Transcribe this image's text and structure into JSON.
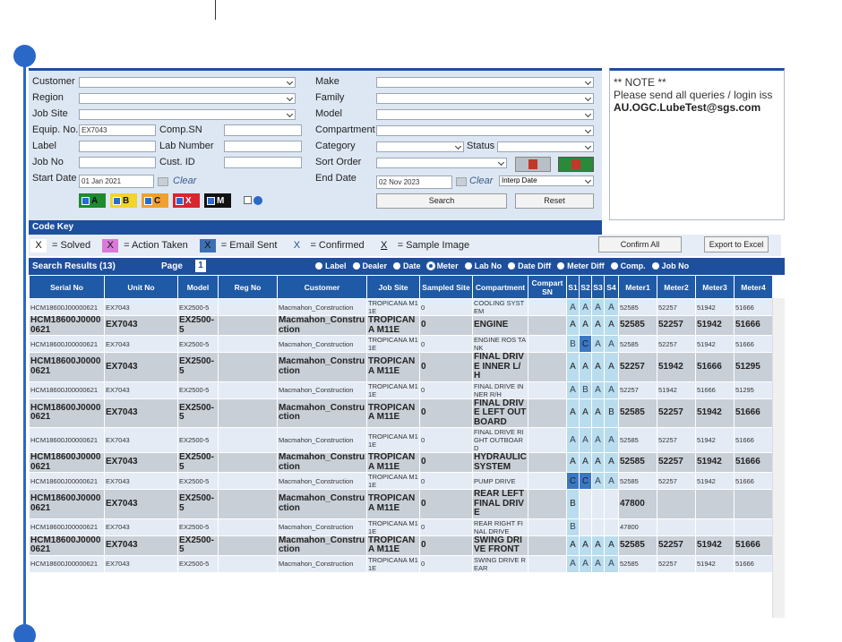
{
  "form": {
    "customer": "Customer",
    "region": "Region",
    "job_site": "Job Site",
    "equip_no": "Equip. No.",
    "equip_no_value": "EX7043",
    "comp_sn": "Comp.SN",
    "label": "Label",
    "lab_number": "Lab Number",
    "job_no": "Job No",
    "cust_id": "Cust. ID",
    "start_date": "Start Date",
    "start_date_value": "01 Jan 2021",
    "clear": "Clear",
    "make": "Make",
    "family": "Family",
    "model": "Model",
    "compartment": "Compartment",
    "category": "Category",
    "status": "Status",
    "sort_order": "Sort Order",
    "end_date": "End Date",
    "end_date_value": "02 Nov 2023",
    "interp": "Interp Date",
    "search": "Search",
    "reset": "Reset",
    "grades": [
      "A",
      "B",
      "C",
      "X",
      "M"
    ]
  },
  "note": {
    "title": "** NOTE **",
    "text": "Please send all queries / login iss",
    "email": "AU.OGC.LubeTest@sgs.com"
  },
  "code_key": {
    "title": "Code Key",
    "items": [
      {
        "code": "X",
        "text": "= Solved"
      },
      {
        "code": "X",
        "text": "= Action Taken"
      },
      {
        "code": "X",
        "text": "= Email Sent"
      },
      {
        "code": "X",
        "text": "= Confirmed"
      },
      {
        "code": "X",
        "text": "= Sample Image"
      }
    ],
    "confirm_all": "Confirm All",
    "export": "Export to Excel"
  },
  "results": {
    "title": "Search Results (13)",
    "page_label": "Page",
    "page": "1",
    "sort_options": [
      "Label",
      "Dealer",
      "Date",
      "Meter",
      "Lab No",
      "Date Diff",
      "Meter Diff",
      "Comp.",
      "Job No"
    ],
    "selected": 3
  },
  "table": {
    "headers": [
      "Serial No",
      "Unit No",
      "Model",
      "Reg No",
      "Customer",
      "Job Site",
      "Sampled Site",
      "Compartment",
      "Compart SN",
      "S1",
      "S2",
      "S3",
      "S4",
      "Meter1",
      "Meter2",
      "Meter3",
      "Meter4"
    ],
    "rows": [
      [
        "HCM18600J00000621",
        "EX7043",
        "EX2500-5",
        null,
        "Macmahon_Construction",
        "TROPICANA M11E",
        0,
        "COOLING SYSTEM",
        null,
        "A",
        "A",
        "A",
        "A",
        52585,
        52257,
        51942,
        51666
      ],
      [
        "HCM18600J00000621",
        "EX7043",
        "EX2500-5",
        null,
        "Macmahon_Construction",
        "TROPICANA M11E",
        0,
        "ENGINE",
        null,
        "A",
        "A",
        "A",
        "A",
        52585,
        52257,
        51942,
        51666
      ],
      [
        "HCM18600J00000621",
        "EX7043",
        "EX2500-5",
        null,
        "Macmahon_Construction",
        "TROPICANA M11E",
        0,
        "ENGINE ROS TANK",
        null,
        "B",
        "C",
        "A",
        "A",
        52585,
        52257,
        51942,
        51666
      ],
      [
        "HCM18600J00000621",
        "EX7043",
        "EX2500-5",
        null,
        "Macmahon_Construction",
        "TROPICANA M11E",
        0,
        "FINAL DRIVE INNER L/H",
        null,
        "A",
        "A",
        "A",
        "A",
        52257,
        51942,
        51666,
        51295
      ],
      [
        "HCM18600J00000621",
        "EX7043",
        "EX2500-5",
        null,
        "Macmahon_Construction",
        "TROPICANA M11E",
        0,
        "FINAL DRIVE INNER R/H",
        null,
        "A",
        "B",
        "A",
        "A",
        52257,
        51942,
        51666,
        51295
      ],
      [
        "HCM18600J00000621",
        "EX7043",
        "EX2500-5",
        null,
        "Macmahon_Construction",
        "TROPICANA M11E",
        0,
        "FINAL DRIVE LEFT OUTBOARD",
        null,
        "A",
        "A",
        "A",
        "B",
        52585,
        52257,
        51942,
        51666
      ],
      [
        "HCM18600J00000621",
        "EX7043",
        "EX2500-5",
        null,
        "Macmahon_Construction",
        "TROPICANA M11E",
        0,
        "FINAL DRIVE RIGHT OUTBOARD",
        null,
        "A",
        "A",
        "A",
        "A",
        52585,
        52257,
        51942,
        51666
      ],
      [
        "HCM18600J00000621",
        "EX7043",
        "EX2500-5",
        null,
        "Macmahon_Construction",
        "TROPICANA M11E",
        0,
        "HYDRAULIC SYSTEM",
        null,
        "A",
        "A",
        "A",
        "A",
        52585,
        52257,
        51942,
        51666
      ],
      [
        "HCM18600J00000621",
        "EX7043",
        "EX2500-5",
        null,
        "Macmahon_Construction",
        "TROPICANA M11E",
        0,
        "PUMP DRIVE",
        null,
        "C",
        "C",
        "A",
        "A",
        52585,
        52257,
        51942,
        51666
      ],
      [
        "HCM18600J00000621",
        "EX7043",
        "EX2500-5",
        null,
        "Macmahon_Construction",
        "TROPICANA M11E",
        0,
        "REAR LEFT FINAL DRIVE",
        null,
        "B",
        null,
        null,
        null,
        47800,
        null,
        null,
        null
      ],
      [
        "HCM18600J00000621",
        "EX7043",
        "EX2500-5",
        null,
        "Macmahon_Construction",
        "TROPICANA M11E",
        0,
        "REAR RIGHT FINAL DRIVE",
        null,
        "B",
        null,
        null,
        null,
        47800,
        null,
        null,
        null
      ],
      [
        "HCM18600J00000621",
        "EX7043",
        "EX2500-5",
        null,
        "Macmahon_Construction",
        "TROPICANA M11E",
        0,
        "SWING DRIVE FRONT",
        null,
        "A",
        "A",
        "A",
        "A",
        52585,
        52257,
        51942,
        51666
      ],
      [
        "HCM18600J00000621",
        "EX7043",
        "EX2500-5",
        null,
        "Macmahon_Construction",
        "TROPICANA M11E",
        0,
        "SWING DRIVE REAR",
        null,
        "A",
        "A",
        "A",
        "A",
        52585,
        52257,
        51942,
        51666
      ]
    ]
  }
}
